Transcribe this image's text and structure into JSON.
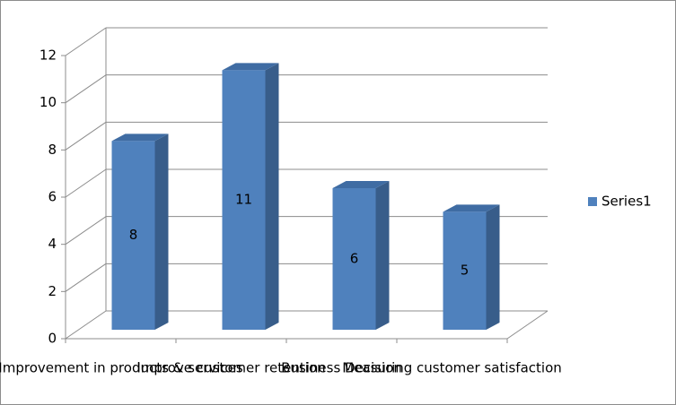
{
  "chart_data": {
    "type": "bar3d",
    "categories": [
      "Improvement in products & services",
      "Improve customer retention",
      "Business Decision",
      "Measuring customer satisfaction"
    ],
    "series": [
      {
        "name": "Series1",
        "color": "#4f81bd",
        "values": [
          8,
          11,
          6,
          5
        ]
      }
    ],
    "ylim": [
      0,
      12
    ],
    "yticks": [
      0,
      2,
      4,
      6,
      8,
      10,
      12
    ],
    "grid": true,
    "legend": "right"
  }
}
